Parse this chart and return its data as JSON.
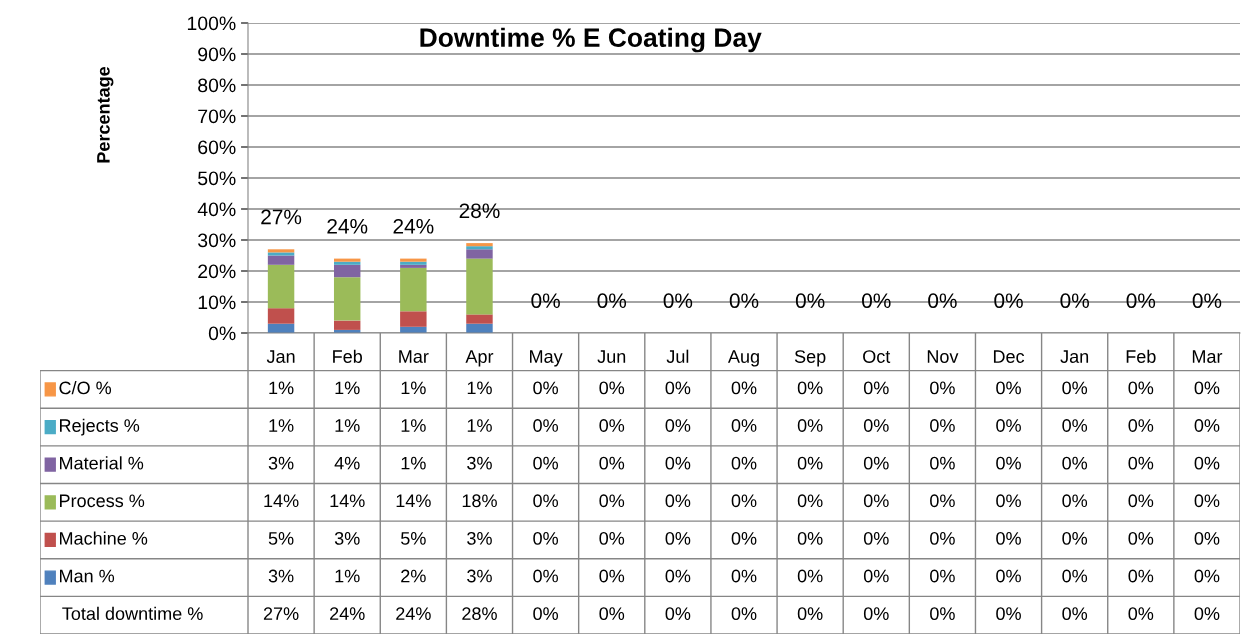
{
  "chart_data": {
    "type": "bar",
    "stacked": true,
    "title": "Downtime % E Coating Day",
    "ylabel": "Percentage",
    "categories": [
      "Jan",
      "Feb",
      "Mar",
      "Apr",
      "May",
      "Jun",
      "Jul",
      "Aug",
      "Sep",
      "Oct",
      "Nov",
      "Dec",
      "Jan",
      "Feb",
      "Mar"
    ],
    "series": [
      {
        "name": "Man %",
        "color": "#4f81bd",
        "values": [
          3,
          1,
          2,
          3,
          0,
          0,
          0,
          0,
          0,
          0,
          0,
          0,
          0,
          0,
          0
        ],
        "value_labels": [
          "3%",
          "1%",
          "2%",
          "3%",
          "0%",
          "0%",
          "0%",
          "0%",
          "0%",
          "0%",
          "0%",
          "0%",
          "0%",
          "0%",
          "0%"
        ]
      },
      {
        "name": "Machine %",
        "color": "#c0504d",
        "values": [
          5,
          3,
          5,
          3,
          0,
          0,
          0,
          0,
          0,
          0,
          0,
          0,
          0,
          0,
          0
        ],
        "value_labels": [
          "5%",
          "3%",
          "5%",
          "3%",
          "0%",
          "0%",
          "0%",
          "0%",
          "0%",
          "0%",
          "0%",
          "0%",
          "0%",
          "0%",
          "0%"
        ]
      },
      {
        "name": "Process %",
        "color": "#9bbb59",
        "values": [
          14,
          14,
          14,
          18,
          0,
          0,
          0,
          0,
          0,
          0,
          0,
          0,
          0,
          0,
          0
        ],
        "value_labels": [
          "14%",
          "14%",
          "14%",
          "18%",
          "0%",
          "0%",
          "0%",
          "0%",
          "0%",
          "0%",
          "0%",
          "0%",
          "0%",
          "0%",
          "0%"
        ]
      },
      {
        "name": "Material %",
        "color": "#8064a2",
        "values": [
          3,
          4,
          1,
          3,
          0,
          0,
          0,
          0,
          0,
          0,
          0,
          0,
          0,
          0,
          0
        ],
        "value_labels": [
          "3%",
          "4%",
          "1%",
          "3%",
          "0%",
          "0%",
          "0%",
          "0%",
          "0%",
          "0%",
          "0%",
          "0%",
          "0%",
          "0%",
          "0%"
        ]
      },
      {
        "name": "Rejects %",
        "color": "#4bacc6",
        "values": [
          1,
          1,
          1,
          1,
          0,
          0,
          0,
          0,
          0,
          0,
          0,
          0,
          0,
          0,
          0
        ],
        "value_labels": [
          "1%",
          "1%",
          "1%",
          "1%",
          "0%",
          "0%",
          "0%",
          "0%",
          "0%",
          "0%",
          "0%",
          "0%",
          "0%",
          "0%",
          "0%"
        ]
      },
      {
        "name": "C/O %",
        "color": "#f79646",
        "values": [
          1,
          1,
          1,
          1,
          0,
          0,
          0,
          0,
          0,
          0,
          0,
          0,
          0,
          0,
          0
        ],
        "value_labels": [
          "1%",
          "1%",
          "1%",
          "1%",
          "0%",
          "0%",
          "0%",
          "0%",
          "0%",
          "0%",
          "0%",
          "0%",
          "0%",
          "0%",
          "0%"
        ]
      }
    ],
    "annotations": [
      "Total downtime %"
    ],
    "totals": [
      "27%",
      "24%",
      "24%",
      "28%",
      "0%",
      "0%",
      "0%",
      "0%",
      "0%",
      "0%",
      "0%",
      "0%",
      "0%",
      "0%",
      "0%"
    ],
    "ylim": [
      0,
      100
    ],
    "yticks": [
      {
        "value": 0,
        "label": "0%"
      },
      {
        "value": 10,
        "label": "10%"
      },
      {
        "value": 20,
        "label": "20%"
      },
      {
        "value": 30,
        "label": "30%"
      },
      {
        "value": 40,
        "label": "40%"
      },
      {
        "value": 50,
        "label": "50%"
      },
      {
        "value": 60,
        "label": "60%"
      },
      {
        "value": 70,
        "label": "70%"
      },
      {
        "value": 80,
        "label": "80%"
      },
      {
        "value": 90,
        "label": "90%"
      },
      {
        "value": 100,
        "label": "100%"
      }
    ],
    "grid": "y",
    "legend": "bottom"
  }
}
